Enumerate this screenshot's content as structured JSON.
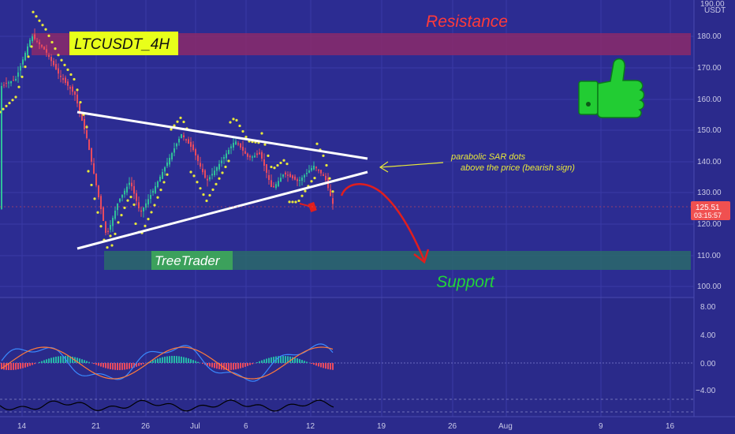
{
  "symbol_label": "LTCUSDT_4H",
  "watermark": "TreeTrader",
  "annotations": {
    "resistance": "Resistance",
    "support": "Support",
    "sar_note_line1": "parabolic SAR dots",
    "sar_note_line2": "above the price (bearish sign)"
  },
  "price_axis": {
    "unit": "USDT",
    "top_tick": "190.00",
    "ticks": [
      "180.00",
      "170.00",
      "160.00",
      "150.00",
      "140.00",
      "130.00",
      "120.00",
      "110.00",
      "100.00"
    ],
    "current_price": "125.51",
    "countdown": "03:15:57"
  },
  "indicator_axis": {
    "ticks": [
      "8.00",
      "4.00",
      "0.00",
      "−4.00"
    ]
  },
  "time_axis": {
    "labels": [
      "14",
      "21",
      "26",
      "Jul",
      "6",
      "12",
      "19",
      "26",
      "Aug",
      "9",
      "16"
    ]
  },
  "colors": {
    "background": "#2b2a8c",
    "resistance_zone": "#8b2a6a",
    "support_zone": "#2a6a6a",
    "sar_dots": "#e8e83a",
    "trend_lines": "#ffffff",
    "projection_arrow": "#e01e1e",
    "thumbs_up": "#22cc33",
    "current_price_badge": "#f05050",
    "label_bg": "#e8ff1a"
  },
  "icons": [
    "thumbs-up-icon",
    "down-arrow-icon",
    "price-projection-arrow-icon"
  ]
}
